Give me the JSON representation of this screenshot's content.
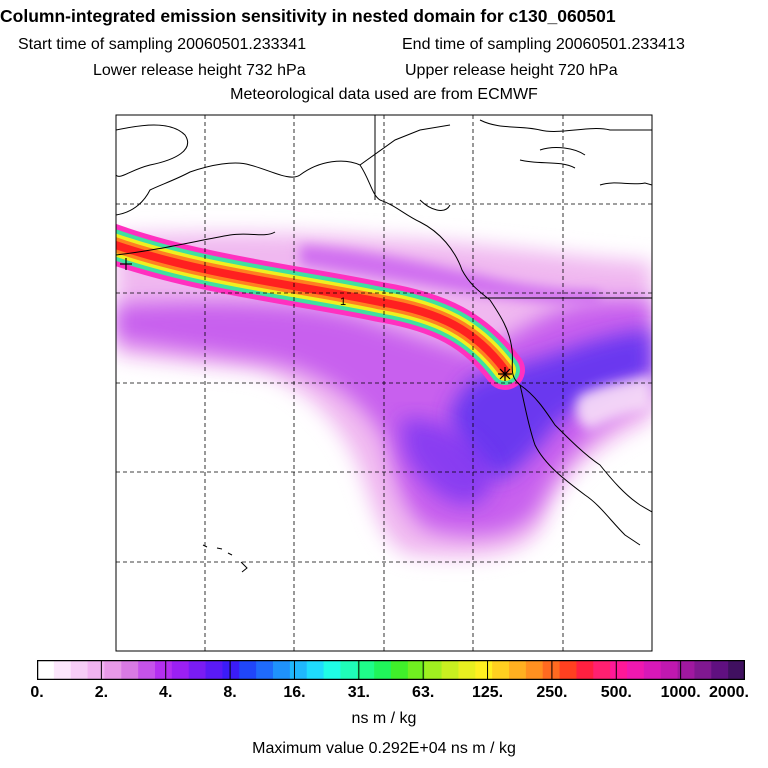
{
  "title": "Column-integrated emission sensitivity in nested domain for c130_060501",
  "sampling": {
    "start_label": "Start time of sampling 20060501.233341",
    "end_label": "End time of sampling 20060501.233413"
  },
  "release": {
    "lower_label": "Lower release height  732 hPa",
    "upper_label": "Upper release height  720 hPa"
  },
  "met_label": "Meteorological data used are from ECMWF",
  "map": {
    "marker_label": "1",
    "release_point_symbol": "star"
  },
  "colorbar": {
    "ticks": [
      "0.",
      "2.",
      "4.",
      "8.",
      "16.",
      "31.",
      "63.",
      "125.",
      "250.",
      "500.",
      "1000.",
      "2000."
    ],
    "colors": [
      "#ffffff",
      "#fbe6fb",
      "#f6cdf6",
      "#f2b3f2",
      "#e89ae8",
      "#d97ae4",
      "#c653ea",
      "#b42ff0",
      "#9b20f2",
      "#7a1cf4",
      "#5a1af6",
      "#3b1cf8",
      "#2046fa",
      "#1f6bfb",
      "#1f92fc",
      "#1fb8fd",
      "#1fdcfd",
      "#1ffde6",
      "#1ffdb8",
      "#1ffd8a",
      "#20f55a",
      "#40f02a",
      "#70f020",
      "#a0f020",
      "#c8f020",
      "#e8f020",
      "#fff020",
      "#ffd020",
      "#ffb020",
      "#ff9020",
      "#ff6a20",
      "#ff4020",
      "#ff2040",
      "#ff2070",
      "#ff1898",
      "#f018b0",
      "#d818b8",
      "#c018b0",
      "#a018a0",
      "#801890",
      "#601080",
      "#401060"
    ],
    "unit": "ns m / kg"
  },
  "max_value_label": "Maximum value  0.292E+04 ns m / kg"
}
